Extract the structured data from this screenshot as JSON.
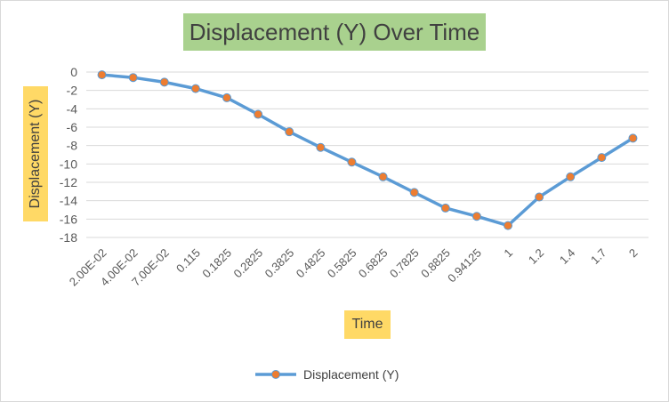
{
  "chart_data": {
    "type": "line",
    "title": "Displacement (Y) Over Time",
    "xlabel": "Time",
    "ylabel": "Displacement (Y)",
    "categories": [
      "2.00E-02",
      "4.00E-02",
      "7.00E-02",
      "0.115",
      "0.1825",
      "0.2825",
      "0.3825",
      "0.4825",
      "0.5825",
      "0.6825",
      "0.7825",
      "0.8825",
      "0.94125",
      "1",
      "1.2",
      "1.4",
      "1.7",
      "2"
    ],
    "series": [
      {
        "name": "Displacement (Y)",
        "values": [
          -0.3,
          -0.6,
          -1.1,
          -1.8,
          -2.8,
          -4.6,
          -6.5,
          -8.2,
          -9.8,
          -11.4,
          -13.1,
          -14.8,
          -15.7,
          -16.7,
          -13.6,
          -11.4,
          -9.3,
          -7.2
        ],
        "color": "#5b9bd5",
        "marker_color": "#ed7d31"
      }
    ],
    "yticks": [
      "0",
      "-2",
      "-4",
      "-6",
      "-8",
      "-10",
      "-12",
      "-14",
      "-16",
      "-18"
    ],
    "ylim": [
      -18,
      0
    ],
    "grid": true,
    "legend": "bottom"
  }
}
